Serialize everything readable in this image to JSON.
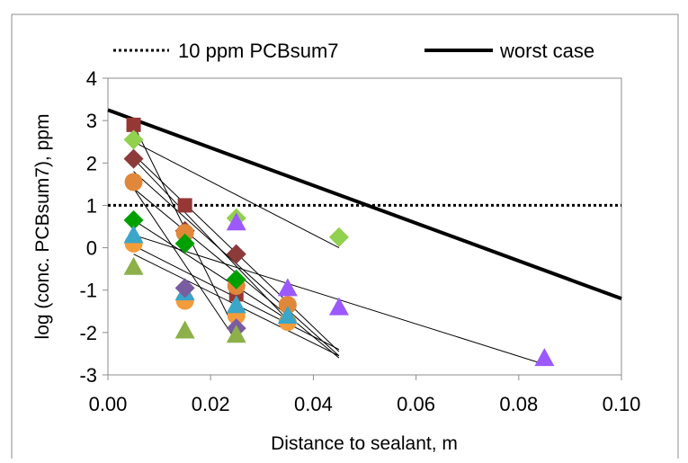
{
  "chart_data": {
    "type": "scatter",
    "title": "",
    "xlabel": "Distance to sealant, m",
    "ylabel": "log (conc. PCBsum7),  ppm",
    "xlim": [
      0,
      0.1
    ],
    "ylim": [
      -3,
      4
    ],
    "xticks": [
      "0.00",
      "0.02",
      "0.04",
      "0.06",
      "0.08",
      "0.10"
    ],
    "yticks": [
      "-3",
      "-2",
      "-1",
      "0",
      "1",
      "2",
      "3",
      "4"
    ],
    "grid": false,
    "legend_position": "top",
    "legend": [
      {
        "label": "10 ppm PCBsum7",
        "style": "dotted"
      },
      {
        "label": "worst case",
        "style": "solid"
      }
    ],
    "reference_lines": [
      {
        "name": "10 ppm PCBsum7",
        "style": "dotted",
        "points": [
          [
            0.0,
            1.0
          ],
          [
            0.1,
            1.0
          ]
        ]
      },
      {
        "name": "worst case",
        "style": "solid",
        "points": [
          [
            0.0,
            3.25
          ],
          [
            0.1,
            -1.2
          ]
        ]
      }
    ],
    "fit_lines": [
      [
        [
          0.005,
          2.5
        ],
        [
          0.045,
          0.0
        ]
      ],
      [
        [
          0.005,
          2.2
        ],
        [
          0.045,
          -2.45
        ]
      ],
      [
        [
          0.005,
          1.8
        ],
        [
          0.045,
          -2.55
        ]
      ],
      [
        [
          0.005,
          1.4
        ],
        [
          0.045,
          -2.6
        ]
      ],
      [
        [
          0.005,
          0.3
        ],
        [
          0.085,
          -2.75
        ]
      ],
      [
        [
          0.005,
          2.9
        ],
        [
          0.025,
          -2.0
        ]
      ],
      [
        [
          0.005,
          2.1
        ],
        [
          0.035,
          -1.7
        ]
      ],
      [
        [
          0.005,
          1.4
        ],
        [
          0.025,
          -2.2
        ]
      ],
      [
        [
          0.005,
          0.65
        ],
        [
          0.035,
          -1.7
        ]
      ],
      [
        [
          0.005,
          0.05
        ],
        [
          0.045,
          -2.4
        ]
      ],
      [
        [
          0.005,
          -0.15
        ],
        [
          0.045,
          -2.55
        ]
      ]
    ],
    "series": [
      {
        "marker": "square",
        "color": "#953735",
        "points": [
          [
            0.005,
            2.9
          ],
          [
            0.015,
            1.0
          ],
          [
            0.025,
            -1.1
          ]
        ]
      },
      {
        "marker": "diamond",
        "color": "#8c3a3a",
        "points": [
          [
            0.005,
            2.1
          ],
          [
            0.015,
            0.4
          ],
          [
            0.025,
            -0.15
          ]
        ]
      },
      {
        "marker": "diamond",
        "color": "#92d050",
        "points": [
          [
            0.005,
            2.55
          ],
          [
            0.025,
            0.7
          ],
          [
            0.045,
            0.25
          ]
        ]
      },
      {
        "marker": "circle",
        "color": "#e0873a",
        "points": [
          [
            0.005,
            1.55
          ],
          [
            0.015,
            0.35
          ],
          [
            0.025,
            -0.9
          ],
          [
            0.035,
            -1.35
          ]
        ]
      },
      {
        "marker": "circle",
        "color": "#f39c3a",
        "points": [
          [
            0.005,
            0.1
          ],
          [
            0.015,
            -1.25
          ],
          [
            0.025,
            -1.6
          ],
          [
            0.035,
            -1.75
          ]
        ]
      },
      {
        "marker": "diamond",
        "color": "#00a000",
        "points": [
          [
            0.005,
            0.65
          ],
          [
            0.015,
            0.1
          ],
          [
            0.025,
            -0.75
          ]
        ]
      },
      {
        "marker": "triangle",
        "color": "#3aa6c8",
        "points": [
          [
            0.005,
            0.3
          ],
          [
            0.015,
            -1.05
          ],
          [
            0.025,
            -1.35
          ],
          [
            0.035,
            -1.6
          ]
        ]
      },
      {
        "marker": "triangle",
        "color": "#9b59ff",
        "points": [
          [
            0.025,
            0.6
          ],
          [
            0.035,
            -0.95
          ],
          [
            0.045,
            -1.4
          ],
          [
            0.085,
            -2.6
          ]
        ]
      },
      {
        "marker": "diamond",
        "color": "#7a5ca0",
        "points": [
          [
            0.015,
            -0.95
          ],
          [
            0.025,
            -1.9
          ]
        ]
      },
      {
        "marker": "triangle",
        "color": "#8db04a",
        "points": [
          [
            0.005,
            -0.45
          ],
          [
            0.015,
            -1.95
          ],
          [
            0.025,
            -2.05
          ]
        ]
      }
    ]
  }
}
